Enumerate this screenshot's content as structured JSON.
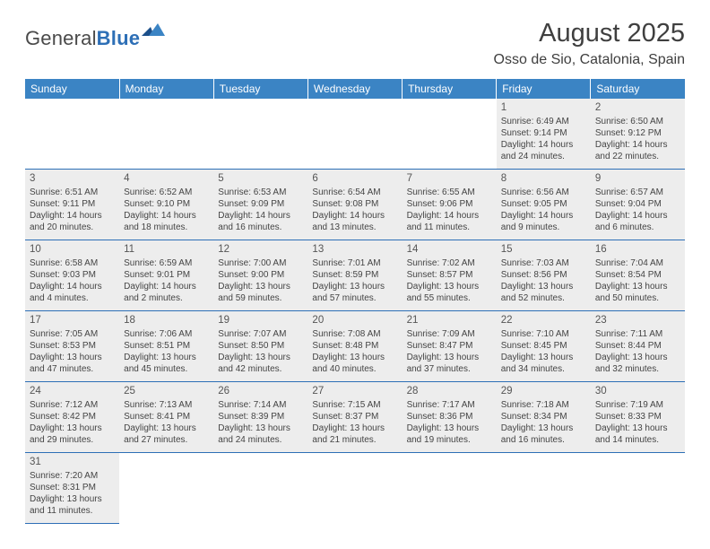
{
  "brand": {
    "name1": "General",
    "name2": "Blue"
  },
  "title": "August 2025",
  "location": "Osso de Sio, Catalonia, Spain",
  "colors": {
    "header_bg": "#3b84c4",
    "header_text": "#ffffff",
    "cell_bg": "#ededed",
    "rule": "#2d6fb6",
    "brand_blue": "#2d6fb6",
    "text": "#444444"
  },
  "day_headers": [
    "Sunday",
    "Monday",
    "Tuesday",
    "Wednesday",
    "Thursday",
    "Friday",
    "Saturday"
  ],
  "weeks": [
    [
      null,
      null,
      null,
      null,
      null,
      {
        "n": "1",
        "sr": "Sunrise: 6:49 AM",
        "ss": "Sunset: 9:14 PM",
        "d1": "Daylight: 14 hours",
        "d2": "and 24 minutes."
      },
      {
        "n": "2",
        "sr": "Sunrise: 6:50 AM",
        "ss": "Sunset: 9:12 PM",
        "d1": "Daylight: 14 hours",
        "d2": "and 22 minutes."
      }
    ],
    [
      {
        "n": "3",
        "sr": "Sunrise: 6:51 AM",
        "ss": "Sunset: 9:11 PM",
        "d1": "Daylight: 14 hours",
        "d2": "and 20 minutes."
      },
      {
        "n": "4",
        "sr": "Sunrise: 6:52 AM",
        "ss": "Sunset: 9:10 PM",
        "d1": "Daylight: 14 hours",
        "d2": "and 18 minutes."
      },
      {
        "n": "5",
        "sr": "Sunrise: 6:53 AM",
        "ss": "Sunset: 9:09 PM",
        "d1": "Daylight: 14 hours",
        "d2": "and 16 minutes."
      },
      {
        "n": "6",
        "sr": "Sunrise: 6:54 AM",
        "ss": "Sunset: 9:08 PM",
        "d1": "Daylight: 14 hours",
        "d2": "and 13 minutes."
      },
      {
        "n": "7",
        "sr": "Sunrise: 6:55 AM",
        "ss": "Sunset: 9:06 PM",
        "d1": "Daylight: 14 hours",
        "d2": "and 11 minutes."
      },
      {
        "n": "8",
        "sr": "Sunrise: 6:56 AM",
        "ss": "Sunset: 9:05 PM",
        "d1": "Daylight: 14 hours",
        "d2": "and 9 minutes."
      },
      {
        "n": "9",
        "sr": "Sunrise: 6:57 AM",
        "ss": "Sunset: 9:04 PM",
        "d1": "Daylight: 14 hours",
        "d2": "and 6 minutes."
      }
    ],
    [
      {
        "n": "10",
        "sr": "Sunrise: 6:58 AM",
        "ss": "Sunset: 9:03 PM",
        "d1": "Daylight: 14 hours",
        "d2": "and 4 minutes."
      },
      {
        "n": "11",
        "sr": "Sunrise: 6:59 AM",
        "ss": "Sunset: 9:01 PM",
        "d1": "Daylight: 14 hours",
        "d2": "and 2 minutes."
      },
      {
        "n": "12",
        "sr": "Sunrise: 7:00 AM",
        "ss": "Sunset: 9:00 PM",
        "d1": "Daylight: 13 hours",
        "d2": "and 59 minutes."
      },
      {
        "n": "13",
        "sr": "Sunrise: 7:01 AM",
        "ss": "Sunset: 8:59 PM",
        "d1": "Daylight: 13 hours",
        "d2": "and 57 minutes."
      },
      {
        "n": "14",
        "sr": "Sunrise: 7:02 AM",
        "ss": "Sunset: 8:57 PM",
        "d1": "Daylight: 13 hours",
        "d2": "and 55 minutes."
      },
      {
        "n": "15",
        "sr": "Sunrise: 7:03 AM",
        "ss": "Sunset: 8:56 PM",
        "d1": "Daylight: 13 hours",
        "d2": "and 52 minutes."
      },
      {
        "n": "16",
        "sr": "Sunrise: 7:04 AM",
        "ss": "Sunset: 8:54 PM",
        "d1": "Daylight: 13 hours",
        "d2": "and 50 minutes."
      }
    ],
    [
      {
        "n": "17",
        "sr": "Sunrise: 7:05 AM",
        "ss": "Sunset: 8:53 PM",
        "d1": "Daylight: 13 hours",
        "d2": "and 47 minutes."
      },
      {
        "n": "18",
        "sr": "Sunrise: 7:06 AM",
        "ss": "Sunset: 8:51 PM",
        "d1": "Daylight: 13 hours",
        "d2": "and 45 minutes."
      },
      {
        "n": "19",
        "sr": "Sunrise: 7:07 AM",
        "ss": "Sunset: 8:50 PM",
        "d1": "Daylight: 13 hours",
        "d2": "and 42 minutes."
      },
      {
        "n": "20",
        "sr": "Sunrise: 7:08 AM",
        "ss": "Sunset: 8:48 PM",
        "d1": "Daylight: 13 hours",
        "d2": "and 40 minutes."
      },
      {
        "n": "21",
        "sr": "Sunrise: 7:09 AM",
        "ss": "Sunset: 8:47 PM",
        "d1": "Daylight: 13 hours",
        "d2": "and 37 minutes."
      },
      {
        "n": "22",
        "sr": "Sunrise: 7:10 AM",
        "ss": "Sunset: 8:45 PM",
        "d1": "Daylight: 13 hours",
        "d2": "and 34 minutes."
      },
      {
        "n": "23",
        "sr": "Sunrise: 7:11 AM",
        "ss": "Sunset: 8:44 PM",
        "d1": "Daylight: 13 hours",
        "d2": "and 32 minutes."
      }
    ],
    [
      {
        "n": "24",
        "sr": "Sunrise: 7:12 AM",
        "ss": "Sunset: 8:42 PM",
        "d1": "Daylight: 13 hours",
        "d2": "and 29 minutes."
      },
      {
        "n": "25",
        "sr": "Sunrise: 7:13 AM",
        "ss": "Sunset: 8:41 PM",
        "d1": "Daylight: 13 hours",
        "d2": "and 27 minutes."
      },
      {
        "n": "26",
        "sr": "Sunrise: 7:14 AM",
        "ss": "Sunset: 8:39 PM",
        "d1": "Daylight: 13 hours",
        "d2": "and 24 minutes."
      },
      {
        "n": "27",
        "sr": "Sunrise: 7:15 AM",
        "ss": "Sunset: 8:37 PM",
        "d1": "Daylight: 13 hours",
        "d2": "and 21 minutes."
      },
      {
        "n": "28",
        "sr": "Sunrise: 7:17 AM",
        "ss": "Sunset: 8:36 PM",
        "d1": "Daylight: 13 hours",
        "d2": "and 19 minutes."
      },
      {
        "n": "29",
        "sr": "Sunrise: 7:18 AM",
        "ss": "Sunset: 8:34 PM",
        "d1": "Daylight: 13 hours",
        "d2": "and 16 minutes."
      },
      {
        "n": "30",
        "sr": "Sunrise: 7:19 AM",
        "ss": "Sunset: 8:33 PM",
        "d1": "Daylight: 13 hours",
        "d2": "and 14 minutes."
      }
    ],
    [
      {
        "n": "31",
        "sr": "Sunrise: 7:20 AM",
        "ss": "Sunset: 8:31 PM",
        "d1": "Daylight: 13 hours",
        "d2": "and 11 minutes."
      },
      null,
      null,
      null,
      null,
      null,
      null
    ]
  ]
}
